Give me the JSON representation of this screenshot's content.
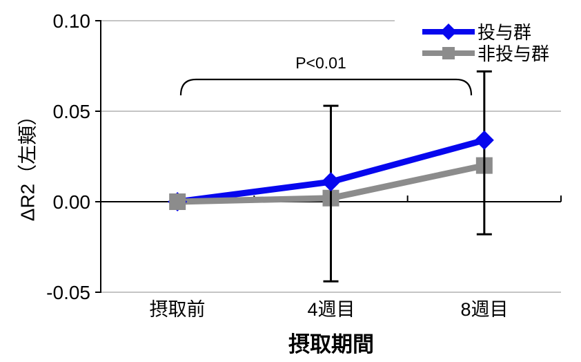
{
  "chart_data": {
    "type": "line",
    "categories": [
      "摂取前",
      "4週目",
      "8週目"
    ],
    "series": [
      {
        "name": "投与群",
        "marker": "diamond",
        "color": "#0707EE",
        "values": [
          0.0,
          0.011,
          0.034
        ]
      },
      {
        "name": "非投与群",
        "marker": "square",
        "color": "#8C8C8C",
        "values": [
          0.0,
          0.002,
          0.02
        ]
      }
    ],
    "error_bars": [
      {
        "category": "4週目",
        "x_index": 1,
        "high": 0.053,
        "low": -0.044
      },
      {
        "category": "8週目",
        "x_index": 2,
        "high": 0.072,
        "low": -0.018
      }
    ],
    "annotation": {
      "text": "P<0.01",
      "from_category": "摂取前",
      "to_category": "8週目"
    },
    "xlabel": "摂取期間",
    "ylabel": "ΔR2（左頬）",
    "y_ticks": [
      "0.10",
      "0.05",
      "0.00",
      "-0.05"
    ],
    "y_tick_values": [
      0.1,
      0.05,
      0.0,
      -0.05
    ],
    "ylim": [
      -0.05,
      0.1
    ],
    "grid": true,
    "legend_position": "top-right",
    "colors": {
      "grid": "#C4C4C4",
      "axis": "#000000",
      "error_bar": "#000000",
      "legend_bg": "#FFFFFF"
    }
  }
}
